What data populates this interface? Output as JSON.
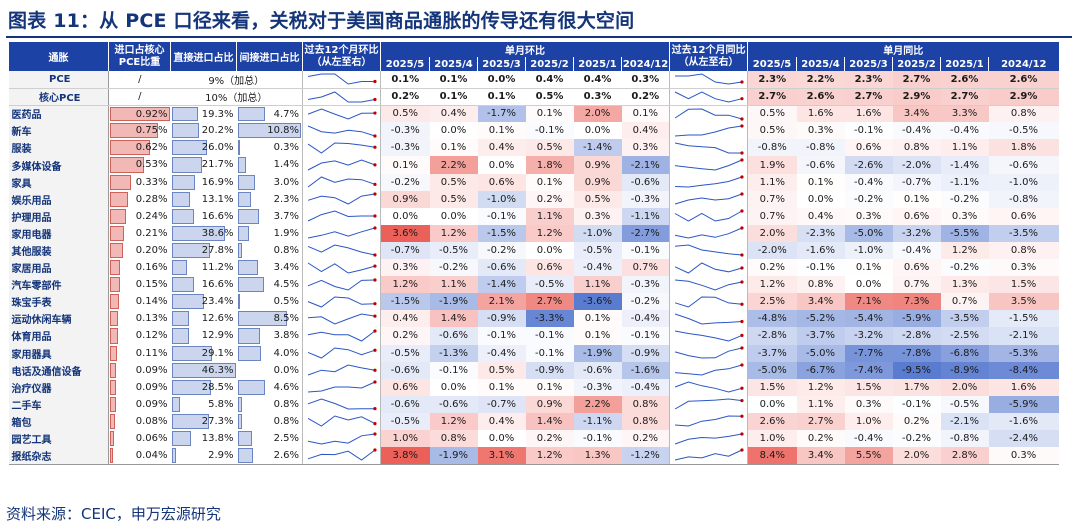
{
  "title": "图表 11：从 PCE 口径来看，关税对于美国商品通胀的传导还有很大空间",
  "source": "资料来源：CEIC，申万宏源研究",
  "colors": {
    "header": "#1d42a5",
    "title": "#14357a",
    "pos": "#e8453c",
    "neg": "#3c64c8"
  },
  "chart_data": {
    "type": "table",
    "headers": {
      "item": "通胀",
      "share": "进口占核心PCE比重",
      "direct": "直接进口占比",
      "indirect": "间接进口占比",
      "spark_mom": "过去12个月环比（从左至右）",
      "mom_group": "单月环比",
      "spark_yoy": "过去12个月同比（从左至右）",
      "yoy_group": "单月同比",
      "months": [
        "2025/5",
        "2025/4",
        "2025/3",
        "2025/2",
        "2025/1",
        "2024/12"
      ]
    },
    "aggregates": [
      {
        "name": "PCE",
        "share": "/",
        "import_text": "9%（加总）",
        "mom": [
          0.1,
          0.1,
          0.0,
          0.4,
          0.4,
          0.3
        ],
        "yoy": [
          2.3,
          2.2,
          2.3,
          2.7,
          2.6,
          2.6
        ]
      },
      {
        "name": "核心PCE",
        "share": "/",
        "import_text": "10%（加总）",
        "mom": [
          0.2,
          0.1,
          0.1,
          0.5,
          0.3,
          0.2
        ],
        "yoy": [
          2.7,
          2.6,
          2.7,
          2.9,
          2.7,
          2.9
        ]
      }
    ],
    "rows": [
      {
        "name": "医药品",
        "share": 0.92,
        "direct": 19.3,
        "indirect": 4.7,
        "mom": [
          0.5,
          0.4,
          -1.7,
          0.1,
          2.0,
          0.1
        ],
        "yoy": [
          0.5,
          1.6,
          1.6,
          3.4,
          3.3,
          0.8
        ]
      },
      {
        "name": "新车",
        "share": 0.75,
        "direct": 20.2,
        "indirect": 10.8,
        "mom": [
          -0.3,
          0.0,
          0.1,
          -0.1,
          0.0,
          0.4
        ],
        "yoy": [
          0.5,
          0.3,
          -0.1,
          -0.4,
          -0.4,
          -0.5
        ]
      },
      {
        "name": "服装",
        "share": 0.62,
        "direct": 26.0,
        "indirect": 0.3,
        "mom": [
          -0.3,
          0.1,
          0.4,
          0.5,
          -1.4,
          0.3
        ],
        "yoy": [
          -0.8,
          -0.8,
          0.6,
          0.8,
          1.1,
          1.8
        ]
      },
      {
        "name": "多媒体设备",
        "share": 0.53,
        "direct": 21.7,
        "indirect": 1.4,
        "mom": [
          0.1,
          2.2,
          0.0,
          1.8,
          0.9,
          -2.1
        ],
        "yoy": [
          1.9,
          -0.6,
          -2.6,
          -2.0,
          -1.4,
          -0.6
        ]
      },
      {
        "name": "家具",
        "share": 0.33,
        "direct": 16.9,
        "indirect": 3.0,
        "mom": [
          -0.2,
          0.5,
          0.6,
          0.1,
          0.9,
          -0.6
        ],
        "yoy": [
          1.1,
          0.1,
          -0.4,
          -0.7,
          -1.1,
          -1.0
        ]
      },
      {
        "name": "娱乐用品",
        "share": 0.28,
        "direct": 13.1,
        "indirect": 2.3,
        "mom": [
          0.9,
          0.5,
          -1.0,
          0.2,
          0.5,
          -0.3
        ],
        "yoy": [
          0.7,
          0.0,
          -0.2,
          0.1,
          -0.2,
          -0.8
        ]
      },
      {
        "name": "护理用品",
        "share": 0.24,
        "direct": 16.6,
        "indirect": 3.7,
        "mom": [
          0.0,
          0.0,
          -0.1,
          1.1,
          0.3,
          -1.1
        ],
        "yoy": [
          0.7,
          0.4,
          0.3,
          0.6,
          0.3,
          0.6
        ]
      },
      {
        "name": "家用电器",
        "share": 0.21,
        "direct": 38.6,
        "indirect": 1.9,
        "mom": [
          3.6,
          1.2,
          -1.5,
          1.2,
          -1.0,
          -2.7
        ],
        "yoy": [
          2.0,
          -2.3,
          -5.0,
          -3.2,
          -5.5,
          -3.5
        ]
      },
      {
        "name": "其他服装",
        "share": 0.2,
        "direct": 27.8,
        "indirect": 0.8,
        "mom": [
          -0.7,
          -0.5,
          -0.2,
          0.0,
          -0.5,
          -0.1
        ],
        "yoy": [
          -2.0,
          -1.6,
          -1.0,
          -0.4,
          1.2,
          0.8
        ]
      },
      {
        "name": "家居用品",
        "share": 0.16,
        "direct": 11.2,
        "indirect": 3.4,
        "mom": [
          0.3,
          -0.2,
          -0.6,
          0.6,
          -0.4,
          0.7
        ],
        "yoy": [
          0.2,
          -0.1,
          0.1,
          0.6,
          -0.2,
          0.3
        ]
      },
      {
        "name": "汽车零部件",
        "share": 0.15,
        "direct": 16.6,
        "indirect": 4.5,
        "mom": [
          1.2,
          1.1,
          -1.4,
          -0.5,
          1.1,
          -0.3
        ],
        "yoy": [
          1.2,
          0.8,
          0.0,
          0.7,
          1.3,
          1.5
        ]
      },
      {
        "name": "珠宝手表",
        "share": 0.14,
        "direct": 23.4,
        "indirect": 0.5,
        "mom": [
          -1.5,
          -1.9,
          2.1,
          2.7,
          -3.6,
          -0.2
        ],
        "yoy": [
          2.5,
          3.4,
          7.1,
          7.3,
          0.7,
          3.5
        ]
      },
      {
        "name": "运动休闲车辆",
        "share": 0.13,
        "direct": 12.6,
        "indirect": 8.5,
        "mom": [
          0.4,
          1.4,
          -0.9,
          -3.3,
          0.1,
          -0.4
        ],
        "yoy": [
          -4.8,
          -5.2,
          -5.4,
          -5.9,
          -3.5,
          -1.5
        ]
      },
      {
        "name": "体育用品",
        "share": 0.12,
        "direct": 12.9,
        "indirect": 3.8,
        "mom": [
          0.2,
          -0.6,
          -0.1,
          -0.1,
          0.1,
          -0.1
        ],
        "yoy": [
          -2.8,
          -3.7,
          -3.2,
          -2.8,
          -2.5,
          -2.1
        ]
      },
      {
        "name": "家用器具",
        "share": 0.11,
        "direct": 29.1,
        "indirect": 4.0,
        "mom": [
          -0.5,
          -1.3,
          -0.4,
          -0.1,
          -1.9,
          -0.9
        ],
        "yoy": [
          -3.7,
          -5.0,
          -7.7,
          -7.8,
          -6.8,
          -5.3
        ]
      },
      {
        "name": "电话及通信设备",
        "share": 0.09,
        "direct": 46.3,
        "indirect": 0.0,
        "mom": [
          -0.6,
          -0.1,
          0.5,
          -0.9,
          -0.6,
          -1.6
        ],
        "yoy": [
          -5.0,
          -6.7,
          -7.4,
          -9.5,
          -8.9,
          -8.4
        ]
      },
      {
        "name": "治疗仪器",
        "share": 0.09,
        "direct": 28.5,
        "indirect": 4.6,
        "mom": [
          0.6,
          0.0,
          0.1,
          0.1,
          -0.3,
          -0.4
        ],
        "yoy": [
          1.5,
          1.2,
          1.5,
          1.7,
          2.0,
          1.6
        ]
      },
      {
        "name": "二手车",
        "share": 0.09,
        "direct": 5.8,
        "indirect": 0.8,
        "mom": [
          -0.6,
          -0.6,
          -0.7,
          0.9,
          2.2,
          0.8
        ],
        "yoy": [
          0.0,
          1.1,
          0.3,
          -0.1,
          -0.5,
          -5.9
        ]
      },
      {
        "name": "箱包",
        "share": 0.08,
        "direct": 27.3,
        "indirect": 0.8,
        "mom": [
          -0.5,
          1.2,
          0.4,
          1.4,
          -1.1,
          0.8
        ],
        "yoy": [
          2.6,
          2.7,
          1.0,
          0.2,
          -2.1,
          -1.6
        ]
      },
      {
        "name": "园艺工具",
        "share": 0.06,
        "direct": 13.8,
        "indirect": 2.5,
        "mom": [
          1.0,
          0.8,
          0.0,
          0.2,
          -0.1,
          0.2
        ],
        "yoy": [
          1.0,
          0.2,
          -0.4,
          -0.2,
          -0.8,
          -2.4
        ]
      },
      {
        "name": "报纸杂志",
        "share": 0.04,
        "direct": 2.9,
        "indirect": 2.6,
        "mom": [
          3.8,
          -1.9,
          3.1,
          1.2,
          1.3,
          -1.2
        ],
        "yoy": [
          8.4,
          3.4,
          5.5,
          2.0,
          2.8,
          0.3
        ]
      }
    ]
  }
}
